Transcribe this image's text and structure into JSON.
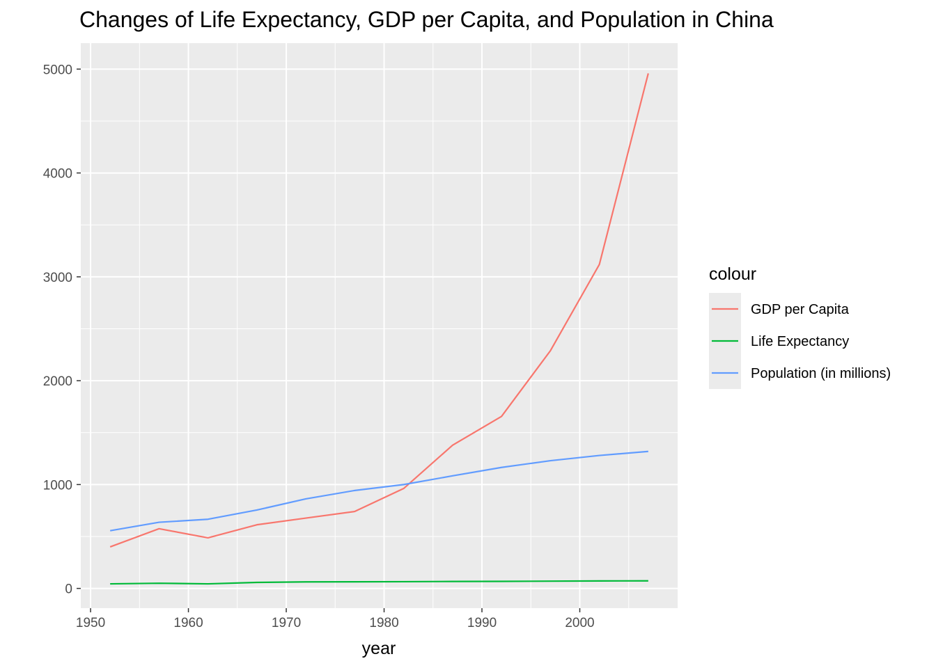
{
  "chart_data": {
    "type": "line",
    "title": "Changes of Life Expectancy, GDP per Capita, and Population in China",
    "xlabel": "year",
    "ylabel": "",
    "x": [
      1952,
      1957,
      1962,
      1967,
      1972,
      1977,
      1982,
      1987,
      1992,
      1997,
      2002,
      2007
    ],
    "xlim": [
      1949,
      2010
    ],
    "ylim": [
      -190,
      5250
    ],
    "x_ticks": [
      "1950",
      "1960",
      "1970",
      "1980",
      "1990",
      "2000"
    ],
    "x_tick_values": [
      1950,
      1960,
      1970,
      1980,
      1990,
      2000
    ],
    "y_ticks": [
      "0",
      "1000",
      "2000",
      "3000",
      "4000",
      "5000"
    ],
    "y_tick_values": [
      0,
      1000,
      2000,
      3000,
      4000,
      5000
    ],
    "grid": true,
    "legend": {
      "title": "colour",
      "position": "right"
    },
    "series": [
      {
        "name": "GDP per Capita",
        "color": "#F8766D",
        "values": [
          400,
          575,
          487,
          613,
          677,
          741,
          962,
          1379,
          1656,
          2289,
          3119,
          4959
        ]
      },
      {
        "name": "Life Expectancy",
        "color": "#00BA38",
        "values": [
          44,
          50,
          44,
          58,
          63,
          64,
          65,
          67,
          68,
          70,
          72,
          73
        ]
      },
      {
        "name": "Population (in millions)",
        "color": "#619CFF",
        "values": [
          556,
          637,
          666,
          755,
          862,
          943,
          1000,
          1084,
          1165,
          1230,
          1280,
          1319
        ]
      }
    ]
  }
}
